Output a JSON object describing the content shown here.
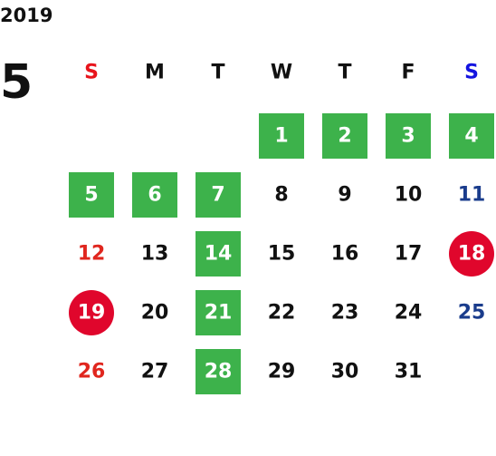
{
  "calendar": {
    "year": 2019,
    "month": 5,
    "weekdays": [
      {
        "label": "S",
        "color": "#e8141c"
      },
      {
        "label": "M",
        "color": "#111111"
      },
      {
        "label": "T",
        "color": "#111111"
      },
      {
        "label": "W",
        "color": "#111111"
      },
      {
        "label": "T",
        "color": "#111111"
      },
      {
        "label": "F",
        "color": "#111111"
      },
      {
        "label": "S",
        "color": "#1414e0"
      }
    ],
    "day_colors": {
      "sunday": "#e0261e",
      "saturday": "#1a3c8c",
      "weekday": "#111111"
    },
    "styles": {
      "box": "#3db24b",
      "circle": "#e0062c"
    },
    "days": [
      {
        "label": 1,
        "style": "box"
      },
      {
        "label": 2,
        "style": "box"
      },
      {
        "label": 3,
        "style": "box"
      },
      {
        "label": 4,
        "style": "box"
      },
      {
        "label": 5,
        "style": "box"
      },
      {
        "label": 6,
        "style": "box"
      },
      {
        "label": 7,
        "style": "box"
      },
      {
        "label": 8
      },
      {
        "label": 9
      },
      {
        "label": 10
      },
      {
        "label": 11
      },
      {
        "label": 12
      },
      {
        "label": 13
      },
      {
        "label": 14,
        "style": "box"
      },
      {
        "label": 15
      },
      {
        "label": 16
      },
      {
        "label": 17
      },
      {
        "label": 18,
        "style": "circle"
      },
      {
        "label": 19,
        "style": "circle"
      },
      {
        "label": 20
      },
      {
        "label": 21,
        "style": "box"
      },
      {
        "label": 22
      },
      {
        "label": 23
      },
      {
        "label": 24
      },
      {
        "label": 25
      },
      {
        "label": 26
      },
      {
        "label": 27
      },
      {
        "label": 28,
        "style": "box"
      },
      {
        "label": 29
      },
      {
        "label": 30
      },
      {
        "label": 31
      }
    ]
  }
}
